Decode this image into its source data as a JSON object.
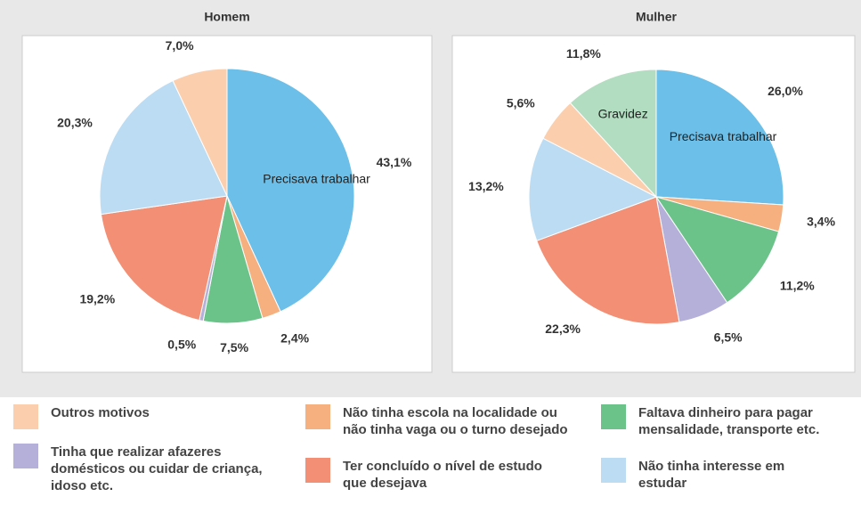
{
  "chart_data": [
    {
      "type": "pie",
      "title": "Homem",
      "categories": [
        "Precisava trabalhar",
        null,
        null,
        null,
        null,
        null,
        null
      ],
      "values": [
        43.1,
        2.4,
        7.5,
        0.5,
        19.2,
        20.3,
        7.0
      ],
      "value_labels": [
        "43,1%",
        "2,4%",
        "7,5%",
        "0,5%",
        "19,2%",
        "20,3%",
        "7,0%"
      ],
      "colors": [
        "#6bbfe8",
        "#f6b07f",
        "#6cc38a",
        "#b5b0d9",
        "#f28f74",
        "#bcdcf3",
        "#fbcfae"
      ]
    },
    {
      "type": "pie",
      "title": "Mulher",
      "categories": [
        "Precisava trabalhar",
        null,
        null,
        null,
        null,
        null,
        null,
        "Gravidez"
      ],
      "values": [
        26.0,
        3.4,
        11.2,
        6.5,
        22.3,
        13.2,
        5.6,
        11.8
      ],
      "value_labels": [
        "26,0%",
        "3,4%",
        "11,2%",
        "6,5%",
        "22,3%",
        "13,2%",
        "5,6%",
        "11,8%"
      ],
      "colors": [
        "#6bbfe8",
        "#f6b07f",
        "#6cc38a",
        "#b5b0d9",
        "#f28f74",
        "#bcdcf3",
        "#fbcfae",
        "#b2ddc0"
      ]
    }
  ],
  "legend": [
    {
      "name": "Outros motivos",
      "color": "#fbcfae"
    },
    {
      "name": "Não tinha escola na localidade ou não tinha vaga ou o turno desejado",
      "color": "#f6b07f"
    },
    {
      "name": "Faltava dinheiro para pagar mensalidade, transporte etc.",
      "color": "#6cc38a"
    },
    {
      "name": "Tinha que realizar afazeres domésticos ou cuidar de criança, idoso etc.",
      "color": "#b5b0d9"
    },
    {
      "name": "Ter concluído o nível de estudo que desejava",
      "color": "#f28f74"
    },
    {
      "name": "Não tinha interesse em estudar",
      "color": "#bcdcf3"
    }
  ]
}
